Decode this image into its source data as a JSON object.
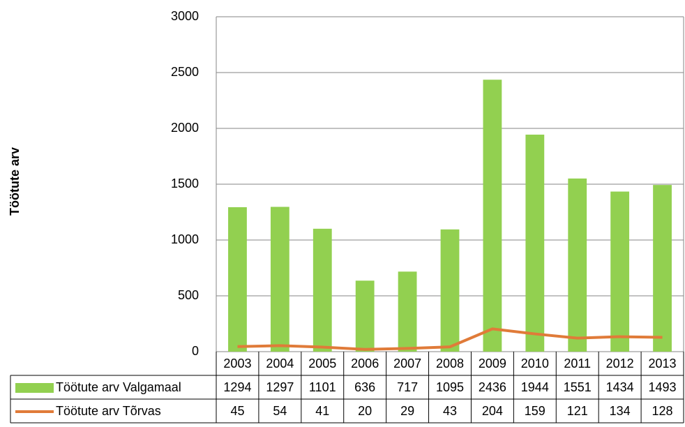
{
  "chart_data": {
    "type": "bar",
    "y_label": "Töötute arv",
    "categories": [
      "2003",
      "2004",
      "2005",
      "2006",
      "2007",
      "2008",
      "2009",
      "2010",
      "2011",
      "2012",
      "2013"
    ],
    "series": [
      {
        "name": "Töötute arv Valgamaal",
        "type": "bar",
        "color": "#92d050",
        "values": [
          1294,
          1297,
          1101,
          636,
          717,
          1095,
          2436,
          1944,
          1551,
          1434,
          1493
        ]
      },
      {
        "name": "Töötute arv Tõrvas",
        "type": "line",
        "color": "#e07b39",
        "values": [
          45,
          54,
          41,
          20,
          29,
          43,
          204,
          159,
          121,
          134,
          128
        ]
      }
    ],
    "ylim": [
      0,
      3000
    ],
    "yticks": [
      0,
      500,
      1000,
      1500,
      2000,
      2500,
      3000
    ],
    "grid": true
  }
}
